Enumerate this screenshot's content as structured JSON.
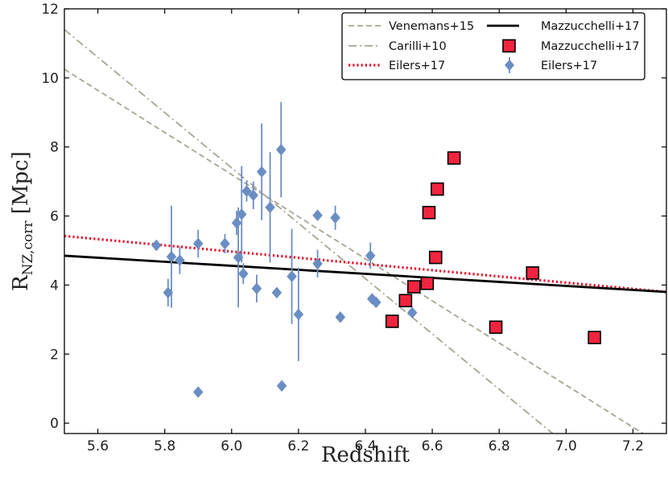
{
  "chart_data": {
    "type": "scatter",
    "xlabel": "Redshift",
    "ylabel_main": "R",
    "ylabel_sub": "NZ,corr",
    "ylabel_unit": " [Mpc]",
    "xlim": [
      5.5,
      7.3
    ],
    "ylim": [
      -0.3,
      12
    ],
    "x_ticks": [
      5.6,
      5.8,
      6.0,
      6.2,
      6.4,
      6.6,
      6.8,
      7.0,
      7.2
    ],
    "y_ticks": [
      0,
      2,
      4,
      6,
      8,
      10,
      12
    ],
    "x_tick_labels": [
      "5.6",
      "5.8",
      "6.0",
      "6.2",
      "6.4",
      "6.6",
      "6.8",
      "7.0",
      "7.2"
    ],
    "y_tick_labels": [
      "0",
      "2",
      "4",
      "6",
      "8",
      "10",
      "12"
    ],
    "grid": false,
    "legend_position": "top-right",
    "colors": {
      "gray": "#a8a495",
      "red": "#e8102a",
      "blue": "#6a8ec4",
      "black": "#000000",
      "square_fill": "#f0243f"
    },
    "lines": [
      {
        "name": "Venemans+15",
        "style": "dashed",
        "x": [
          5.5,
          7.23
        ],
        "y": [
          10.25,
          -0.3
        ]
      },
      {
        "name": "Carilli+10",
        "style": "dashdot",
        "x": [
          5.5,
          6.96
        ],
        "y": [
          11.4,
          -0.3
        ]
      },
      {
        "name": "Eilers+17",
        "style": "dotted",
        "x": [
          5.5,
          7.3
        ],
        "y": [
          5.42,
          3.8
        ]
      },
      {
        "name": "Mazzucchelli+17",
        "style": "solid",
        "x": [
          5.5,
          7.3
        ],
        "y": [
          4.85,
          3.8
        ]
      }
    ],
    "series": [
      {
        "name": "Mazzucchelli+17",
        "marker": "square",
        "x": [
          6.48,
          6.52,
          6.545,
          6.585,
          6.59,
          6.61,
          6.615,
          6.665,
          6.79,
          6.9,
          7.085
        ],
        "y": [
          2.95,
          3.55,
          3.95,
          4.05,
          6.1,
          4.8,
          6.78,
          7.68,
          2.78,
          4.35,
          2.48
        ]
      },
      {
        "name": "Eilers+17",
        "marker": "diamond",
        "points": [
          {
            "x": 5.775,
            "y": 5.15,
            "yerr": [
              0.15,
              0.15
            ]
          },
          {
            "x": 5.81,
            "y": 3.78,
            "yerr": [
              0.4,
              0.4
            ]
          },
          {
            "x": 5.82,
            "y": 4.82,
            "yerr": [
              1.48,
              1.48
            ]
          },
          {
            "x": 5.845,
            "y": 4.72,
            "yerr": [
              0.4,
              0.4
            ]
          },
          {
            "x": 5.9,
            "y": 5.2,
            "yerr": [
              0.4,
              0.4
            ]
          },
          {
            "x": 5.9,
            "y": 0.9,
            "yerr": [
              0,
              0
            ]
          },
          {
            "x": 5.98,
            "y": 5.2,
            "yerr": [
              0.28,
              0.28
            ]
          },
          {
            "x": 6.015,
            "y": 5.8,
            "yerr": [
              0.35,
              0.35
            ]
          },
          {
            "x": 6.02,
            "y": 4.8,
            "yerr": [
              1.45,
              1.45
            ]
          },
          {
            "x": 6.03,
            "y": 6.05,
            "yerr": [
              1.4,
              1.4
            ]
          },
          {
            "x": 6.035,
            "y": 4.33,
            "yerr": [
              0.3,
              0.3
            ]
          },
          {
            "x": 6.045,
            "y": 6.72,
            "yerr": [
              0.3,
              0.3
            ]
          },
          {
            "x": 6.065,
            "y": 6.6,
            "yerr": [
              0.4,
              0.4
            ]
          },
          {
            "x": 6.075,
            "y": 3.9,
            "yerr": [
              0.4,
              0.4
            ]
          },
          {
            "x": 6.09,
            "y": 7.28,
            "yerr": [
              1.4,
              1.4
            ]
          },
          {
            "x": 6.115,
            "y": 6.25,
            "yerr": [
              1.6,
              1.6
            ]
          },
          {
            "x": 6.135,
            "y": 3.78,
            "yerr": [
              0,
              0
            ]
          },
          {
            "x": 6.148,
            "y": 7.92,
            "yerr": [
              1.38,
              1.38
            ]
          },
          {
            "x": 6.15,
            "y": 1.08,
            "yerr": [
              0,
              0
            ]
          },
          {
            "x": 6.18,
            "y": 4.25,
            "yerr": [
              1.38,
              1.38
            ]
          },
          {
            "x": 6.2,
            "y": 3.15,
            "yerr": [
              1.35,
              1.35
            ]
          },
          {
            "x": 6.257,
            "y": 6.02,
            "yerr": [
              0,
              0
            ]
          },
          {
            "x": 6.257,
            "y": 4.62,
            "yerr": [
              0.4,
              0.4
            ]
          },
          {
            "x": 6.31,
            "y": 5.95,
            "yerr": [
              0.35,
              0.35
            ]
          },
          {
            "x": 6.325,
            "y": 3.07,
            "yerr": [
              0,
              0
            ]
          },
          {
            "x": 6.415,
            "y": 4.85,
            "yerr": [
              0.38,
              0.38
            ]
          },
          {
            "x": 6.42,
            "y": 3.6,
            "yerr": [
              0,
              0
            ]
          },
          {
            "x": 6.432,
            "y": 3.5,
            "yerr": [
              0,
              0
            ]
          },
          {
            "x": 6.54,
            "y": 3.2,
            "yerr": [
              0,
              0
            ]
          }
        ]
      }
    ],
    "legend": [
      {
        "label": "Venemans+15",
        "style": "dashed",
        "color": "#a8a495"
      },
      {
        "label": "Carilli+10",
        "style": "dashdot",
        "color": "#a8a495"
      },
      {
        "label": "Eilers+17",
        "style": "dotted",
        "color": "#e8102a"
      },
      {
        "label": "Mazzucchelli+17",
        "style": "solid",
        "color": "#000000"
      },
      {
        "label": "Mazzucchelli+17",
        "style": "square",
        "color": "#f0243f"
      },
      {
        "label": "Eilers+17",
        "style": "diamond",
        "color": "#6a8ec4"
      }
    ]
  }
}
